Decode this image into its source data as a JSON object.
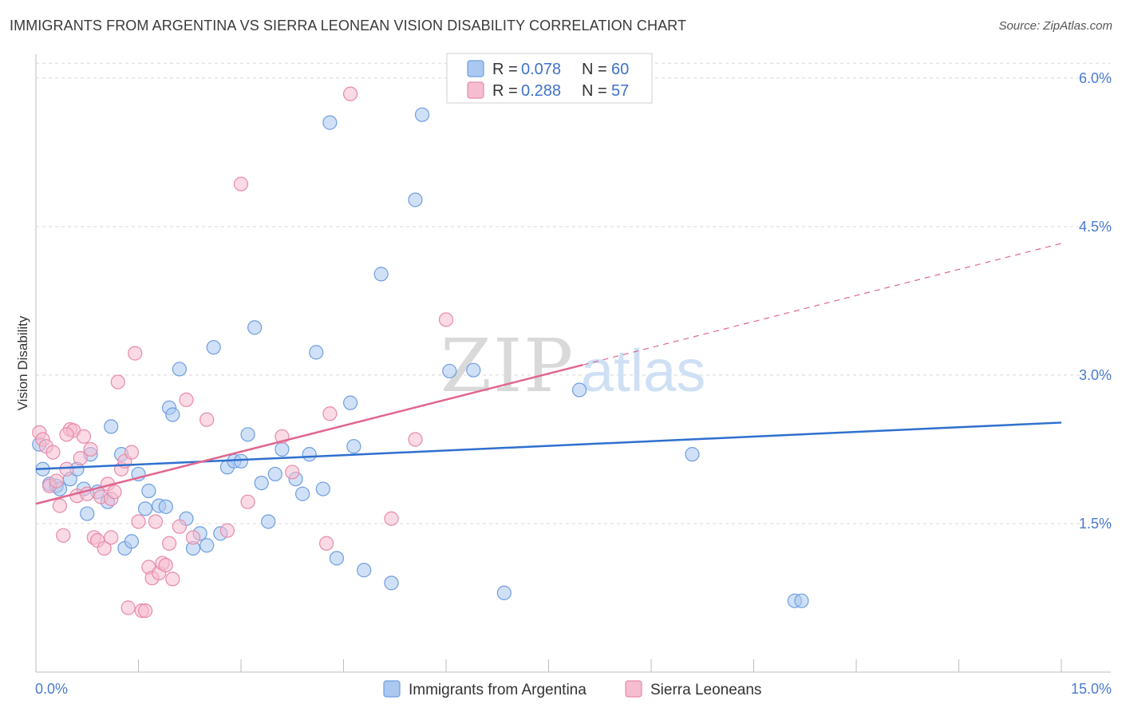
{
  "title": "IMMIGRANTS FROM ARGENTINA VS SIERRA LEONEAN VISION DISABILITY CORRELATION CHART",
  "source": "Source: ZipAtlas.com",
  "watermark": {
    "zip": "ZIP",
    "atlas": "atlas"
  },
  "colors": {
    "blue_fill": "#aac8f0",
    "blue_stroke": "#6f9ee0",
    "blue_line": "#2f6fcf",
    "pink_fill": "#f6bcd0",
    "pink_stroke": "#e88aa8",
    "pink_line": "#e0668f",
    "grid": "#d8d8d8",
    "tick_text": "#4a7bd0"
  },
  "legend": {
    "items": [
      {
        "r_label": "R = ",
        "r_value": "0.078",
        "n_label": "N = ",
        "n_value": "60",
        "color": "#aac8f0",
        "stroke": "#6f9ee0"
      },
      {
        "r_label": "R = ",
        "r_value": "0.288",
        "n_label": "N = ",
        "n_value": "57",
        "color": "#f6bcd0",
        "stroke": "#e88aa8"
      }
    ]
  },
  "bottom_legend": [
    {
      "label": "Immigrants from Argentina",
      "color": "#aac8f0",
      "stroke": "#6f9ee0"
    },
    {
      "label": "Sierra Leoneans",
      "color": "#f6bcd0",
      "stroke": "#e88aa8"
    }
  ],
  "chart_data": {
    "type": "scatter",
    "title": "IMMIGRANTS FROM ARGENTINA VS SIERRA LEONEAN VISION DISABILITY CORRELATION CHART",
    "xlabel": "",
    "ylabel": "Vision Disability",
    "xlim": [
      0,
      15
    ],
    "ylim": [
      0,
      6.2
    ],
    "x_ticks": [
      0,
      1.5,
      3,
      4.5,
      6,
      7.5,
      9,
      10.5,
      12,
      13.5,
      15
    ],
    "x_tick_labels": [
      {
        "value": 0,
        "label": "0.0%"
      },
      {
        "value": 15,
        "label": "15.0%"
      }
    ],
    "y_ticks": [
      {
        "value": 1.5,
        "label": "1.5%"
      },
      {
        "value": 3.0,
        "label": "3.0%"
      },
      {
        "value": 4.5,
        "label": "4.5%"
      },
      {
        "value": 6.0,
        "label": "6.0%"
      }
    ],
    "grid": "horizontal dashed",
    "legend_position": "top-center",
    "series": [
      {
        "name": "Immigrants from Argentina",
        "r": 0.078,
        "n": 60,
        "trend": {
          "x0": 0,
          "y0": 2.05,
          "x1": 15,
          "y1": 2.52,
          "dashed_from": null
        },
        "points": [
          [
            0.05,
            2.3
          ],
          [
            0.1,
            2.05
          ],
          [
            0.2,
            1.9
          ],
          [
            0.3,
            1.88
          ],
          [
            0.35,
            1.85
          ],
          [
            0.5,
            1.95
          ],
          [
            0.6,
            2.05
          ],
          [
            0.7,
            1.85
          ],
          [
            0.75,
            1.6
          ],
          [
            0.8,
            2.2
          ],
          [
            0.9,
            1.82
          ],
          [
            1.05,
            1.72
          ],
          [
            1.1,
            2.48
          ],
          [
            1.25,
            2.2
          ],
          [
            1.3,
            1.25
          ],
          [
            1.4,
            1.32
          ],
          [
            1.5,
            2.0
          ],
          [
            1.6,
            1.65
          ],
          [
            1.65,
            1.83
          ],
          [
            1.8,
            1.68
          ],
          [
            1.9,
            1.67
          ],
          [
            1.95,
            2.67
          ],
          [
            2.0,
            2.6
          ],
          [
            2.1,
            3.06
          ],
          [
            2.2,
            1.55
          ],
          [
            2.3,
            1.25
          ],
          [
            2.4,
            1.4
          ],
          [
            2.5,
            1.28
          ],
          [
            2.6,
            3.28
          ],
          [
            2.7,
            1.4
          ],
          [
            2.8,
            2.07
          ],
          [
            2.9,
            2.13
          ],
          [
            3.0,
            2.13
          ],
          [
            3.1,
            2.4
          ],
          [
            3.2,
            3.48
          ],
          [
            3.3,
            1.91
          ],
          [
            3.4,
            1.52
          ],
          [
            3.5,
            2.0
          ],
          [
            3.6,
            2.25
          ],
          [
            3.8,
            1.95
          ],
          [
            3.9,
            1.8
          ],
          [
            4.0,
            2.2
          ],
          [
            4.1,
            3.23
          ],
          [
            4.2,
            1.85
          ],
          [
            4.3,
            5.55
          ],
          [
            4.4,
            1.15
          ],
          [
            4.6,
            2.72
          ],
          [
            4.65,
            2.28
          ],
          [
            4.8,
            1.03
          ],
          [
            5.05,
            4.02
          ],
          [
            5.2,
            0.9
          ],
          [
            5.55,
            4.77
          ],
          [
            5.65,
            5.63
          ],
          [
            6.05,
            3.04
          ],
          [
            6.4,
            3.05
          ],
          [
            6.85,
            0.8
          ],
          [
            7.95,
            2.85
          ],
          [
            9.6,
            2.2
          ],
          [
            11.1,
            0.72
          ],
          [
            11.2,
            0.72
          ]
        ]
      },
      {
        "name": "Sierra Leoneans",
        "r": 0.288,
        "n": 57,
        "trend": {
          "x0": 0,
          "y0": 1.7,
          "x1": 15,
          "y1": 4.33,
          "dashed_from": 8.0
        },
        "points": [
          [
            0.05,
            2.42
          ],
          [
            0.1,
            2.35
          ],
          [
            0.15,
            2.28
          ],
          [
            0.2,
            1.88
          ],
          [
            0.25,
            2.22
          ],
          [
            0.3,
            1.93
          ],
          [
            0.35,
            1.68
          ],
          [
            0.4,
            1.38
          ],
          [
            0.45,
            2.05
          ],
          [
            0.5,
            2.45
          ],
          [
            0.55,
            2.44
          ],
          [
            0.6,
            1.78
          ],
          [
            0.65,
            2.16
          ],
          [
            0.7,
            2.38
          ],
          [
            0.75,
            1.8
          ],
          [
            0.8,
            2.25
          ],
          [
            0.85,
            1.36
          ],
          [
            0.9,
            1.33
          ],
          [
            0.95,
            1.77
          ],
          [
            1.0,
            1.25
          ],
          [
            1.05,
            1.9
          ],
          [
            1.1,
            1.75
          ],
          [
            1.15,
            1.82
          ],
          [
            1.2,
            2.93
          ],
          [
            1.25,
            2.05
          ],
          [
            1.3,
            2.13
          ],
          [
            1.35,
            0.65
          ],
          [
            1.45,
            3.22
          ],
          [
            1.5,
            1.52
          ],
          [
            1.55,
            0.62
          ],
          [
            1.6,
            0.62
          ],
          [
            1.65,
            1.06
          ],
          [
            1.7,
            0.95
          ],
          [
            1.75,
            1.52
          ],
          [
            1.8,
            1.0
          ],
          [
            1.85,
            1.1
          ],
          [
            1.9,
            1.08
          ],
          [
            1.95,
            1.3
          ],
          [
            2.0,
            0.94
          ],
          [
            2.1,
            1.47
          ],
          [
            2.2,
            2.75
          ],
          [
            2.3,
            1.36
          ],
          [
            2.5,
            2.55
          ],
          [
            2.8,
            1.43
          ],
          [
            3.0,
            4.93
          ],
          [
            3.1,
            1.72
          ],
          [
            3.6,
            2.38
          ],
          [
            3.75,
            2.02
          ],
          [
            4.25,
            1.3
          ],
          [
            4.3,
            2.61
          ],
          [
            4.6,
            5.84
          ],
          [
            5.2,
            1.55
          ],
          [
            5.55,
            2.35
          ],
          [
            6.0,
            3.56
          ],
          [
            1.1,
            1.36
          ],
          [
            1.4,
            2.22
          ],
          [
            0.45,
            2.4
          ]
        ]
      }
    ]
  }
}
